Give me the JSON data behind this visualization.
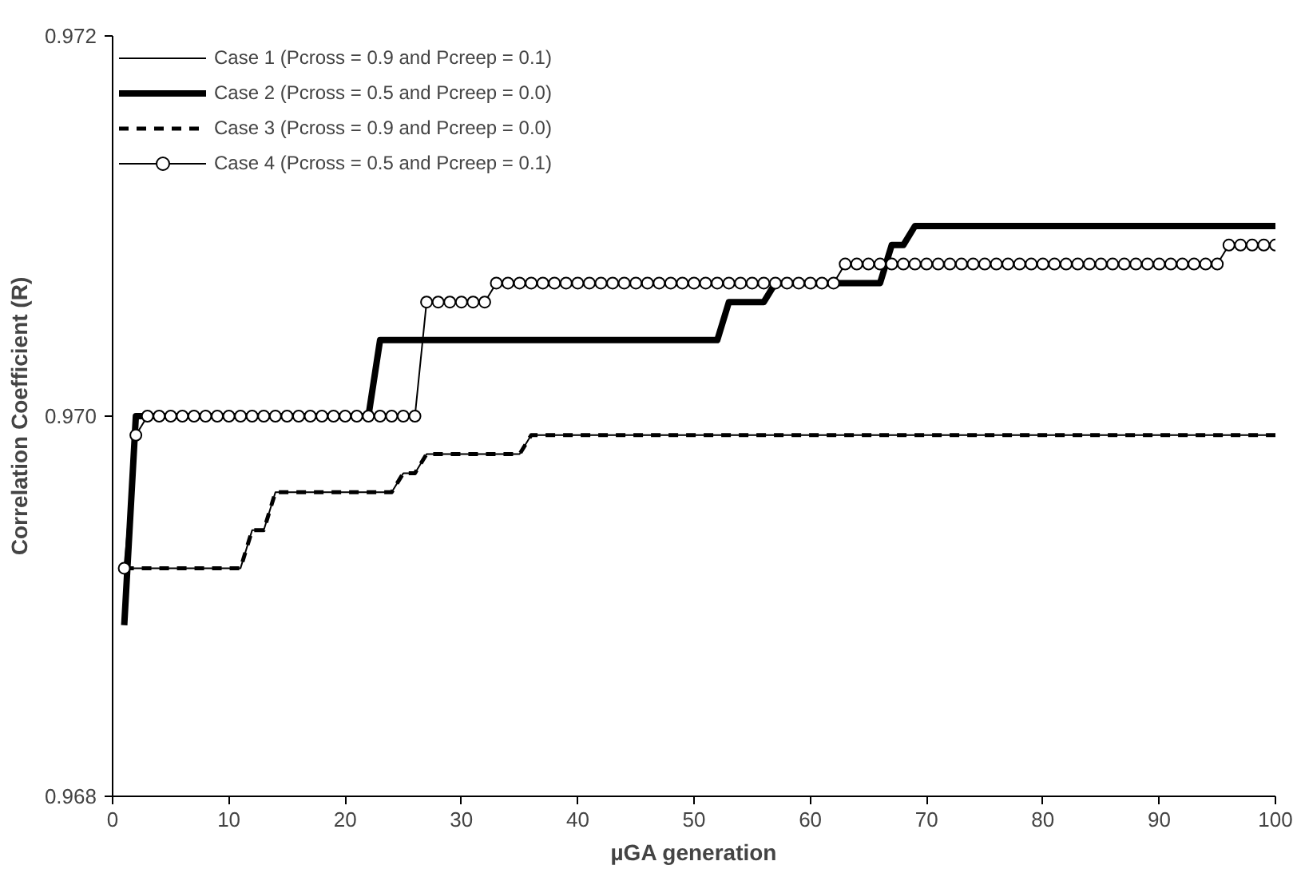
{
  "chart_data": {
    "type": "line",
    "xlabel": "µGA generation",
    "ylabel": "Correlation Coefficient (R)",
    "x": [
      1,
      2,
      3,
      4,
      5,
      6,
      7,
      8,
      9,
      10,
      11,
      12,
      13,
      14,
      15,
      16,
      17,
      18,
      19,
      20,
      21,
      22,
      23,
      24,
      25,
      26,
      27,
      28,
      29,
      30,
      31,
      32,
      33,
      34,
      35,
      36,
      37,
      38,
      39,
      40,
      41,
      42,
      43,
      44,
      45,
      46,
      47,
      48,
      49,
      50,
      51,
      52,
      53,
      54,
      55,
      56,
      57,
      58,
      59,
      60,
      61,
      62,
      63,
      64,
      65,
      66,
      67,
      68,
      69,
      70,
      71,
      72,
      73,
      74,
      75,
      76,
      77,
      78,
      79,
      80,
      81,
      82,
      83,
      84,
      85,
      86,
      87,
      88,
      89,
      90,
      91,
      92,
      93,
      94,
      95,
      96,
      97,
      98,
      99,
      100
    ],
    "xlim": [
      0,
      100
    ],
    "xticks": [
      0,
      10,
      20,
      30,
      40,
      50,
      60,
      70,
      80,
      90,
      100
    ],
    "ylim": [
      0.968,
      0.972
    ],
    "yticks": [
      {
        "value": 0.968,
        "label": "0.968"
      },
      {
        "value": 0.97,
        "label": "0.970"
      },
      {
        "value": 0.972,
        "label": "0.972"
      }
    ],
    "grid": false,
    "legend": "top left",
    "series": [
      {
        "name": "Case 1 (Pcross = 0.9 and Pcreep = 0.1)",
        "color": "#000000",
        "line_style": "solid",
        "marker": "none",
        "values": [
          0.9692,
          0.9692,
          0.9692,
          0.9692,
          0.9692,
          0.9692,
          0.9692,
          0.9692,
          0.9692,
          0.9692,
          0.9692,
          0.9694,
          0.9694,
          0.9696,
          0.9696,
          0.9696,
          0.9696,
          0.9696,
          0.9696,
          0.9696,
          0.9696,
          0.9696,
          0.9696,
          0.9696,
          0.9697,
          0.9697,
          0.9698,
          0.9698,
          0.9698,
          0.9698,
          0.9698,
          0.9698,
          0.9698,
          0.9698,
          0.9698,
          0.9699,
          0.9699,
          0.9699,
          0.9699,
          0.9699,
          0.9699,
          0.9699,
          0.9699,
          0.9699,
          0.9699,
          0.9699,
          0.9699,
          0.9699,
          0.9699,
          0.9699,
          0.9699,
          0.9699,
          0.9699,
          0.9699,
          0.9699,
          0.9699,
          0.9699,
          0.9699,
          0.9699,
          0.9699,
          0.9699,
          0.9699,
          0.9699,
          0.9699,
          0.9699,
          0.9699,
          0.9699,
          0.9699,
          0.9699,
          0.9699,
          0.9699,
          0.9699,
          0.9699,
          0.9699,
          0.9699,
          0.9699,
          0.9699,
          0.9699,
          0.9699,
          0.9699,
          0.9699,
          0.9699,
          0.9699,
          0.9699,
          0.9699,
          0.9699,
          0.9699,
          0.9699,
          0.9699,
          0.9699,
          0.9699,
          0.9699,
          0.9699,
          0.9699,
          0.9699,
          0.9699,
          0.9699,
          0.9699,
          0.9699,
          0.9699
        ]
      },
      {
        "name": "Case 2 (Pcross = 0.5 and Pcreep = 0.0)",
        "color": "#000000",
        "line_style": "solid",
        "marker": "none",
        "values": [
          0.9689,
          0.97,
          0.97,
          0.97,
          0.97,
          0.97,
          0.97,
          0.97,
          0.97,
          0.97,
          0.97,
          0.97,
          0.97,
          0.97,
          0.97,
          0.97,
          0.97,
          0.97,
          0.97,
          0.97,
          0.97,
          0.97,
          0.9704,
          0.9704,
          0.9704,
          0.9704,
          0.9704,
          0.9704,
          0.9704,
          0.9704,
          0.9704,
          0.9704,
          0.9704,
          0.9704,
          0.9704,
          0.9704,
          0.9704,
          0.9704,
          0.9704,
          0.9704,
          0.9704,
          0.9704,
          0.9704,
          0.9704,
          0.9704,
          0.9704,
          0.9704,
          0.9704,
          0.9704,
          0.9704,
          0.9704,
          0.9704,
          0.9706,
          0.9706,
          0.9706,
          0.9706,
          0.9707,
          0.9707,
          0.9707,
          0.9707,
          0.9707,
          0.9707,
          0.9707,
          0.9707,
          0.9707,
          0.9707,
          0.9709,
          0.9709,
          0.971,
          0.971,
          0.971,
          0.971,
          0.971,
          0.971,
          0.971,
          0.971,
          0.971,
          0.971,
          0.971,
          0.971,
          0.971,
          0.971,
          0.971,
          0.971,
          0.971,
          0.971,
          0.971,
          0.971,
          0.971,
          0.971,
          0.971,
          0.971,
          0.971,
          0.971,
          0.971,
          0.971,
          0.971,
          0.971,
          0.971,
          0.971
        ]
      },
      {
        "name": "Case 3 (Pcross = 0.9 and Pcreep = 0.0)",
        "color": "#000000",
        "line_style": "dashed",
        "marker": "none",
        "values": [
          0.9692,
          0.9692,
          0.9692,
          0.9692,
          0.9692,
          0.9692,
          0.9692,
          0.9692,
          0.9692,
          0.9692,
          0.9692,
          0.9694,
          0.9694,
          0.9696,
          0.9696,
          0.9696,
          0.9696,
          0.9696,
          0.9696,
          0.9696,
          0.9696,
          0.9696,
          0.9696,
          0.9696,
          0.9697,
          0.9697,
          0.9698,
          0.9698,
          0.9698,
          0.9698,
          0.9698,
          0.9698,
          0.9698,
          0.9698,
          0.9698,
          0.9699,
          0.9699,
          0.9699,
          0.9699,
          0.9699,
          0.9699,
          0.9699,
          0.9699,
          0.9699,
          0.9699,
          0.9699,
          0.9699,
          0.9699,
          0.9699,
          0.9699,
          0.9699,
          0.9699,
          0.9699,
          0.9699,
          0.9699,
          0.9699,
          0.9699,
          0.9699,
          0.9699,
          0.9699,
          0.9699,
          0.9699,
          0.9699,
          0.9699,
          0.9699,
          0.9699,
          0.9699,
          0.9699,
          0.9699,
          0.9699,
          0.9699,
          0.9699,
          0.9699,
          0.9699,
          0.9699,
          0.9699,
          0.9699,
          0.9699,
          0.9699,
          0.9699,
          0.9699,
          0.9699,
          0.9699,
          0.9699,
          0.9699,
          0.9699,
          0.9699,
          0.9699,
          0.9699,
          0.9699,
          0.9699,
          0.9699,
          0.9699,
          0.9699,
          0.9699,
          0.9699,
          0.9699,
          0.9699,
          0.9699,
          0.9699
        ]
      },
      {
        "name": "Case 4 (Pcross = 0.5 and Pcreep = 0.1)",
        "color": "#000000",
        "line_style": "solid",
        "marker": "circle",
        "values": [
          0.9692,
          0.9699,
          0.97,
          0.97,
          0.97,
          0.97,
          0.97,
          0.97,
          0.97,
          0.97,
          0.97,
          0.97,
          0.97,
          0.97,
          0.97,
          0.97,
          0.97,
          0.97,
          0.97,
          0.97,
          0.97,
          0.97,
          0.97,
          0.97,
          0.97,
          0.97,
          0.9706,
          0.9706,
          0.9706,
          0.9706,
          0.9706,
          0.9706,
          0.9707,
          0.9707,
          0.9707,
          0.9707,
          0.9707,
          0.9707,
          0.9707,
          0.9707,
          0.9707,
          0.9707,
          0.9707,
          0.9707,
          0.9707,
          0.9707,
          0.9707,
          0.9707,
          0.9707,
          0.9707,
          0.9707,
          0.9707,
          0.9707,
          0.9707,
          0.9707,
          0.9707,
          0.9707,
          0.9707,
          0.9707,
          0.9707,
          0.9707,
          0.9707,
          0.9708,
          0.9708,
          0.9708,
          0.9708,
          0.9708,
          0.9708,
          0.9708,
          0.9708,
          0.9708,
          0.9708,
          0.9708,
          0.9708,
          0.9708,
          0.9708,
          0.9708,
          0.9708,
          0.9708,
          0.9708,
          0.9708,
          0.9708,
          0.9708,
          0.9708,
          0.9708,
          0.9708,
          0.9708,
          0.9708,
          0.9708,
          0.9708,
          0.9708,
          0.9708,
          0.9708,
          0.9708,
          0.9708,
          0.9709,
          0.9709,
          0.9709,
          0.9709,
          0.9709
        ]
      }
    ]
  }
}
